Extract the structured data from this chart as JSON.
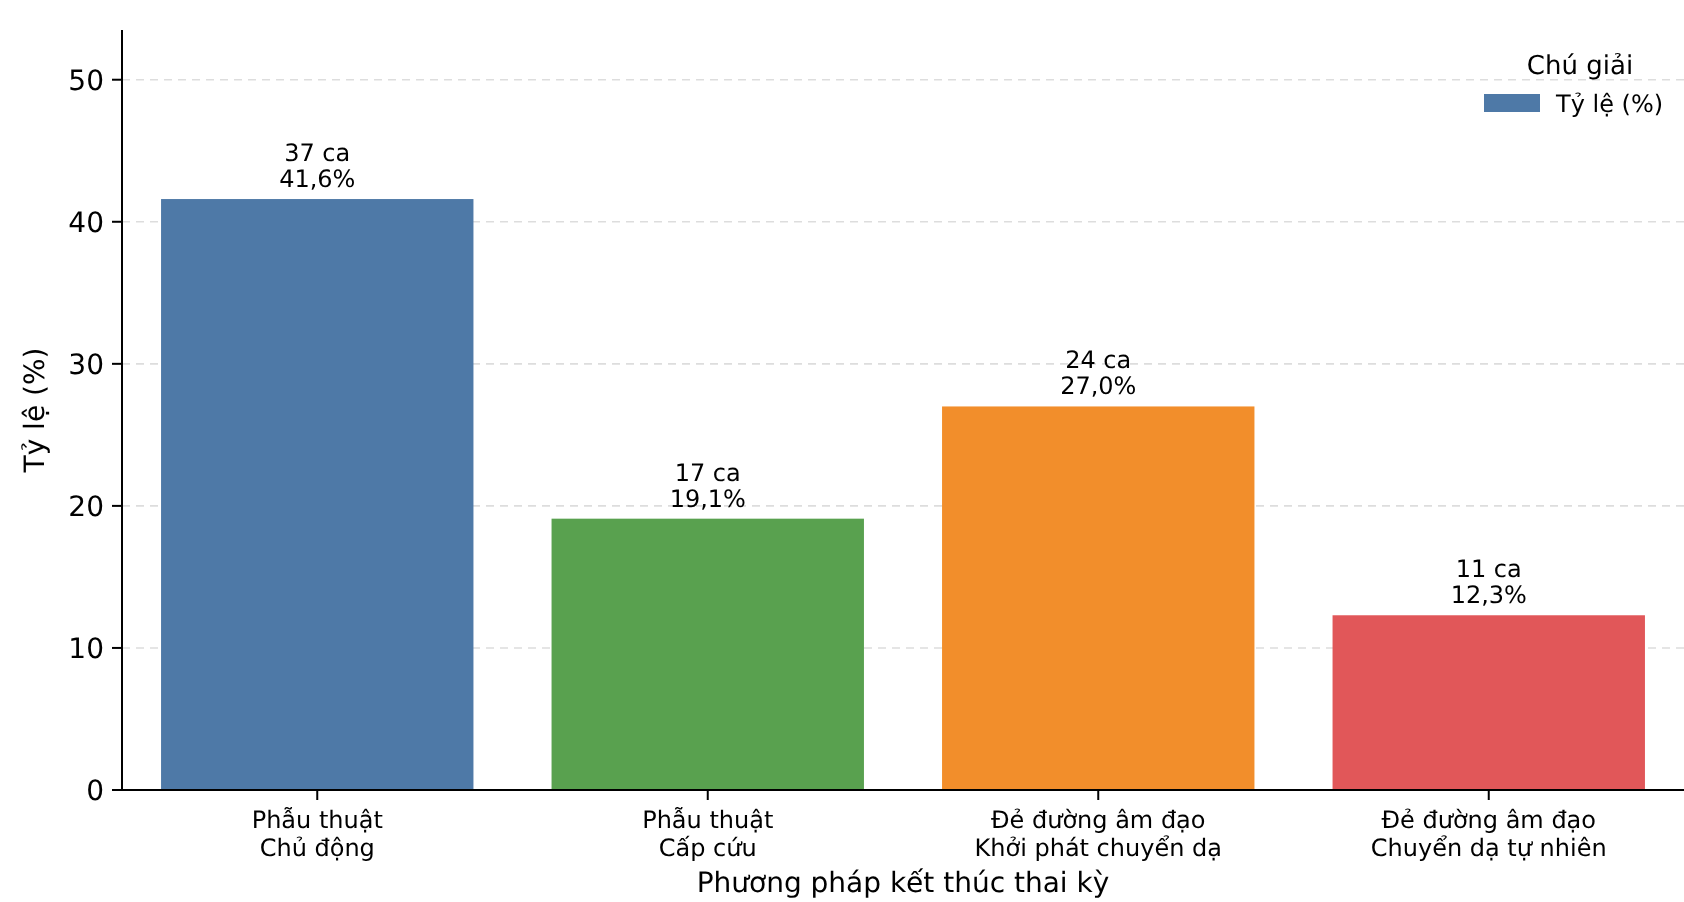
{
  "chart_data": {
    "type": "bar",
    "xlabel": "Phương pháp kết thúc thai kỳ",
    "ylabel": "Tỷ lệ (%)",
    "legend_title": "Chú giải",
    "legend": "top right",
    "grid": "y",
    "categories": [
      "Phẫu thuật\nChủ động",
      "Phẫu thuật\nCấp cứu",
      "Đẻ đường âm đạo\nKhởi phát chuyển dạ",
      "Đẻ đường âm đạo\nChuyển dạ tự nhiên"
    ],
    "series": [
      {
        "name": "Tỷ lệ (%)",
        "color": "#4e79a7",
        "colors": [
          "#4e79a7",
          "#59a14f",
          "#f28e2b",
          "#e15759"
        ],
        "values": [
          41.6,
          19.1,
          27.0,
          12.3
        ],
        "value_labels": [
          "37 ca\n41,6%",
          "17 ca\n19,1%",
          "24 ca\n27,0%",
          "11 ca\n12,3%"
        ]
      }
    ],
    "ylim": [
      0,
      53.5
    ],
    "yticks": [
      0,
      10,
      20,
      30,
      40,
      50
    ]
  }
}
